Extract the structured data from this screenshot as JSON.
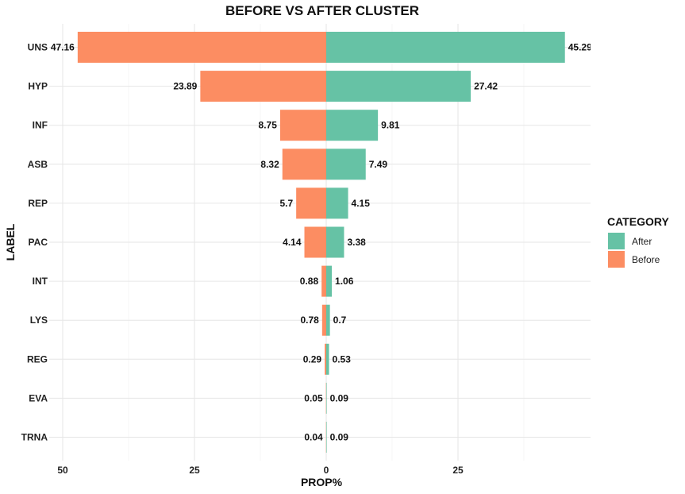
{
  "chart_data": {
    "type": "bar",
    "orientation": "horizontal-diverging",
    "title": "BEFORE VS AFTER CLUSTER",
    "xlabel": "PROP%",
    "ylabel": "LABEL",
    "xlim": [
      -52,
      50
    ],
    "xticks": [
      -50,
      -25,
      0,
      25
    ],
    "xtick_labels": [
      "50",
      "25",
      "0",
      "25"
    ],
    "grid": true,
    "legend": {
      "title": "CATEGORY",
      "position": "right"
    },
    "categories": [
      "UNS",
      "HYP",
      "INF",
      "ASB",
      "REP",
      "PAC",
      "INT",
      "LYS",
      "REG",
      "EVA",
      "TRNA"
    ],
    "series": [
      {
        "name": "After",
        "color": "#66C2A5",
        "values": [
          45.29,
          27.42,
          9.81,
          7.49,
          4.15,
          3.38,
          1.06,
          0.7,
          0.53,
          0.09,
          0.09
        ]
      },
      {
        "name": "Before",
        "color": "#FC8D62",
        "values": [
          47.16,
          23.89,
          8.75,
          8.32,
          5.7,
          4.14,
          0.88,
          0.78,
          0.29,
          0.05,
          0.04
        ]
      }
    ]
  }
}
